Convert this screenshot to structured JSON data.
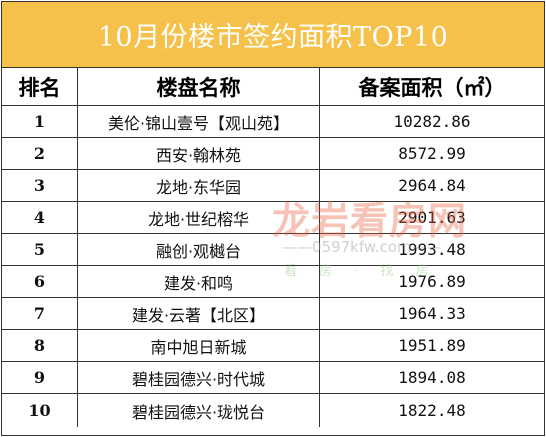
{
  "title": "10月份楼市签约面积TOP10",
  "headers": {
    "rank": "排名",
    "name": "楼盘名称",
    "area": "备案面积（㎡）"
  },
  "rows": [
    {
      "rank": "1",
      "name": "美伦·锦山壹号【观山苑】",
      "area": "10282.86"
    },
    {
      "rank": "2",
      "name": "西安·翰林苑",
      "area": "8572.99"
    },
    {
      "rank": "3",
      "name": "龙地·东华园",
      "area": "2964.84"
    },
    {
      "rank": "4",
      "name": "龙地·世纪榕华",
      "area": "2901.63"
    },
    {
      "rank": "5",
      "name": "融创·观樾台",
      "area": "1993.48"
    },
    {
      "rank": "6",
      "name": "建发·和鸣",
      "area": "1976.89"
    },
    {
      "rank": "7",
      "name": "建发·云著【北区】",
      "area": "1964.33"
    },
    {
      "rank": "8",
      "name": "南中旭日新城",
      "area": "1951.89"
    },
    {
      "rank": "9",
      "name": "碧桂园德兴·时代城",
      "area": "1894.08"
    },
    {
      "rank": "10",
      "name": "碧桂园德兴·珑悦台",
      "area": "1822.48"
    }
  ],
  "watermark": {
    "brand": "龙岩看房网",
    "url": "——0597kfw.com——",
    "slogan": "看 房 · 找 房"
  },
  "colors": {
    "title_bg": "#f6c14a",
    "title_text": "#ffffff"
  }
}
